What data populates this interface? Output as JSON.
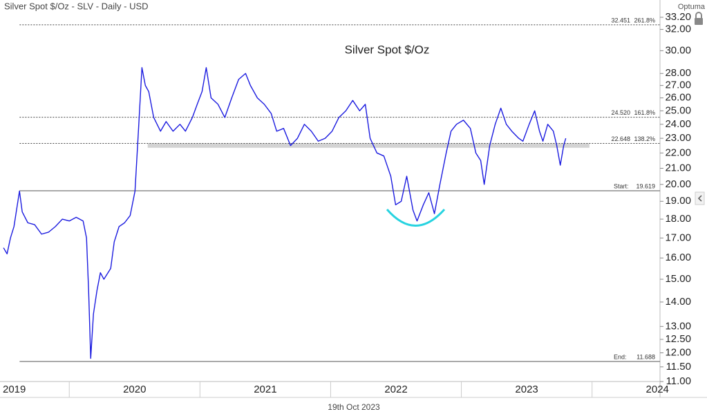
{
  "chart_data": {
    "type": "line",
    "title": "Silver Spot $/Oz - SLV - Daily - USD",
    "subtitle": "Silver Spot $/Oz",
    "date_label": "19th Oct 2023",
    "brand": "Optuma",
    "color": "#1a1adf",
    "log_scale": true,
    "x": [
      2019.497,
      2019.524,
      2019.55,
      2019.577,
      2019.619,
      2019.64,
      2019.683,
      2019.735,
      2019.788,
      2019.841,
      2019.894,
      2019.947,
      2020.0,
      2020.053,
      2020.106,
      2020.132,
      2020.148,
      2020.164,
      2020.185,
      2020.212,
      2020.238,
      2020.265,
      2020.317,
      2020.344,
      2020.381,
      2020.423,
      2020.466,
      2020.503,
      2020.529,
      2020.556,
      2020.582,
      2020.608,
      2020.646,
      2020.698,
      2020.741,
      2020.794,
      2020.847,
      2020.889,
      2020.942,
      2020.979,
      2021.016,
      2021.048,
      2021.085,
      2021.138,
      2021.19,
      2021.243,
      2021.296,
      2021.349,
      2021.386,
      2021.439,
      2021.492,
      2021.545,
      2021.587,
      2021.64,
      2021.693,
      2021.746,
      2021.799,
      2021.852,
      2021.905,
      2021.958,
      2022.011,
      2022.063,
      2022.116,
      2022.169,
      2022.222,
      2022.265,
      2022.302,
      2022.354,
      2022.407,
      2022.46,
      2022.497,
      2022.54,
      2022.582,
      2022.63,
      2022.661,
      2022.709,
      2022.751,
      2022.794,
      2022.836,
      2022.884,
      2022.921,
      2022.963,
      2023.016,
      2023.069,
      2023.111,
      2023.148,
      2023.175,
      2023.217,
      2023.259,
      2023.302,
      2023.344,
      2023.386,
      2023.439,
      2023.471,
      2023.519,
      2023.561,
      2023.598,
      2023.624,
      2023.661,
      2023.704,
      2023.73,
      2023.757,
      2023.783,
      2023.799
    ],
    "values": [
      16.5,
      16.2,
      17.0,
      17.6,
      19.6,
      18.4,
      17.8,
      17.7,
      17.2,
      17.3,
      17.6,
      18.0,
      17.9,
      18.1,
      17.9,
      17.0,
      14.5,
      11.8,
      13.5,
      14.5,
      15.3,
      15.0,
      15.5,
      16.8,
      17.6,
      17.8,
      18.2,
      19.6,
      23.5,
      28.5,
      27.0,
      26.5,
      24.5,
      23.5,
      24.2,
      23.5,
      24.0,
      23.5,
      24.5,
      25.5,
      26.5,
      28.5,
      26.0,
      25.5,
      24.5,
      26.0,
      27.5,
      28.0,
      27.0,
      26.0,
      25.5,
      24.8,
      23.5,
      23.7,
      22.5,
      23.0,
      24.0,
      23.5,
      22.8,
      23.0,
      23.5,
      24.5,
      25.0,
      25.8,
      25.0,
      25.5,
      23.0,
      22.0,
      21.8,
      20.5,
      18.8,
      19.0,
      20.5,
      18.5,
      17.9,
      18.8,
      19.5,
      18.3,
      20.0,
      22.0,
      23.5,
      24.0,
      24.3,
      23.7,
      22.0,
      21.5,
      20.0,
      22.5,
      24.0,
      25.2,
      24.0,
      23.5,
      23.0,
      22.8,
      24.0,
      25.0,
      23.5,
      22.8,
      24.0,
      23.5,
      22.5,
      21.2,
      22.5,
      23.0
    ],
    "xlim": [
      2019.47,
      2024.52
    ],
    "xticks": [
      2019,
      2020,
      2021,
      2022,
      2023,
      2024
    ],
    "ylim": [
      11,
      33.2
    ],
    "yticks": [
      {
        "value": 11,
        "label": "11.00"
      },
      {
        "value": 11.5,
        "label": "11.50"
      },
      {
        "value": 12,
        "label": "12.00"
      },
      {
        "value": 12.5,
        "label": "12.50"
      },
      {
        "value": 13,
        "label": "13.00"
      },
      {
        "value": 14,
        "label": "14.00"
      },
      {
        "value": 15,
        "label": "15.00"
      },
      {
        "value": 16,
        "label": "16.00"
      },
      {
        "value": 17,
        "label": "17.00"
      },
      {
        "value": 18,
        "label": "18.00"
      },
      {
        "value": 19,
        "label": "19.00"
      },
      {
        "value": 20,
        "label": "20.00"
      },
      {
        "value": 21,
        "label": "21.00"
      },
      {
        "value": 22,
        "label": "22.00"
      },
      {
        "value": 23,
        "label": "23.00"
      },
      {
        "value": 24,
        "label": "24.00"
      },
      {
        "value": 25,
        "label": "25.00"
      },
      {
        "value": 26,
        "label": "26.00"
      },
      {
        "value": 27,
        "label": "27.00"
      },
      {
        "value": 28,
        "label": "28.00"
      },
      {
        "value": 30,
        "label": "30.00"
      },
      {
        "value": 32,
        "label": "32.00"
      },
      {
        "value": 33.2,
        "label": "33.20"
      }
    ],
    "level_start": 2019.62,
    "levels": [
      {
        "value": 32.451,
        "label": "32.451",
        "pct": "261.8%",
        "style": "dotted"
      },
      {
        "value": 24.52,
        "label": "24.520",
        "pct": "161.8%",
        "style": "dotted"
      },
      {
        "value": 22.648,
        "label": "22.648",
        "pct": "138.2%",
        "style": "dotted"
      },
      {
        "value": 19.619,
        "label": "19.619",
        "name": "Start:",
        "style": "solid"
      },
      {
        "value": 11.688,
        "label": "11.688",
        "name": "End:",
        "style": "solid"
      }
    ],
    "zone": {
      "from": 2020.6,
      "to": 2023.98,
      "low": 22.35,
      "high": 22.65
    }
  }
}
